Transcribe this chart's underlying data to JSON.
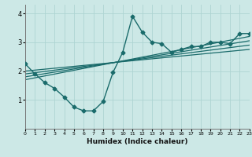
{
  "title": "",
  "xlabel": "Humidex (Indice chaleur)",
  "bg_color": "#cce8e6",
  "line_color": "#1a6b6b",
  "xlim": [
    0,
    23
  ],
  "ylim": [
    0,
    4.3
  ],
  "yticks": [
    1,
    2,
    3,
    4
  ],
  "xticks": [
    0,
    1,
    2,
    3,
    4,
    5,
    6,
    7,
    8,
    9,
    10,
    11,
    12,
    13,
    14,
    15,
    16,
    17,
    18,
    19,
    20,
    21,
    22,
    23
  ],
  "main_line": {
    "x": [
      0,
      1,
      2,
      3,
      4,
      5,
      6,
      7,
      8,
      9,
      10,
      11,
      12,
      13,
      14,
      15,
      16,
      17,
      18,
      19,
      20,
      21,
      22,
      23
    ],
    "y": [
      2.25,
      1.9,
      1.6,
      1.4,
      1.1,
      0.75,
      0.62,
      0.62,
      0.95,
      1.95,
      2.65,
      3.9,
      3.35,
      3.0,
      2.95,
      2.65,
      2.75,
      2.85,
      2.85,
      3.0,
      3.0,
      2.95,
      3.3,
      3.3
    ]
  },
  "linear_lines": [
    {
      "x": [
        0,
        23
      ],
      "y": [
        2.0,
        2.75
      ]
    },
    {
      "x": [
        0,
        23
      ],
      "y": [
        1.9,
        2.9
      ]
    },
    {
      "x": [
        0,
        23
      ],
      "y": [
        1.8,
        3.05
      ]
    },
    {
      "x": [
        0,
        23
      ],
      "y": [
        1.7,
        3.2
      ]
    }
  ],
  "grid_color": "#aed4d2",
  "marker": "D",
  "markersize": 2.5,
  "linewidth": 1.0
}
